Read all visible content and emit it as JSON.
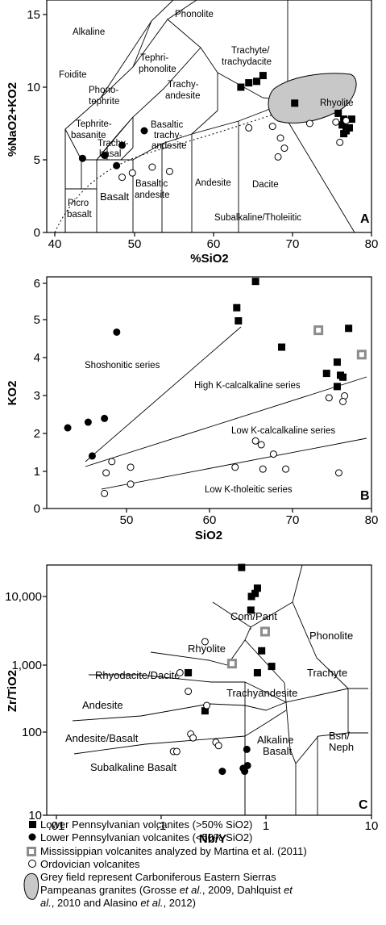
{
  "chart_data": [
    {
      "panel": "A",
      "type": "scatter",
      "xlabel": "%SiO2",
      "ylabel": "%NaO2+KO2",
      "xlim": [
        36,
        80
      ],
      "ylim": [
        0,
        16
      ],
      "xticks": [
        "40",
        "50",
        "60",
        "70",
        "80"
      ],
      "yticks": [
        "0",
        "5",
        "10",
        "15"
      ],
      "field_labels": [
        "Alkaline",
        "Phonolite",
        "Foidite",
        "Tephri-",
        "phonolite",
        "Trachyte/",
        "trachydacite",
        "Rhyolite",
        "Phono-",
        "tephrite",
        "Trachy-",
        "andesite",
        "Tephrite-",
        "basanite",
        "Basaltic",
        "trachy-",
        "andesite",
        "Trachy-",
        "basal",
        "Picro",
        "basalt",
        "Basalt",
        "Basaltic",
        "andesite",
        "Andesite",
        "Dacite",
        "Subalkaline/Tholeiitic"
      ],
      "series": [
        {
          "name": "Lower Pennsylvanian volcanites (>50% SiO2)",
          "marker": "filled-square",
          "points": [
            [
              63.5,
              10.0
            ],
            [
              64.5,
              10.3
            ],
            [
              65.5,
              10.4
            ],
            [
              66.3,
              10.8
            ],
            [
              70.3,
              8.9
            ],
            [
              75.8,
              8.2
            ],
            [
              76.5,
              7.8
            ],
            [
              76.3,
              7.4
            ],
            [
              77.5,
              7.8
            ],
            [
              76.8,
              7.0
            ],
            [
              77.2,
              7.2
            ],
            [
              76.5,
              6.8
            ]
          ]
        },
        {
          "name": "Lower Pennsylvanian volcanites (<50% SiO2)",
          "marker": "filled-circle",
          "points": [
            [
              43.5,
              5.1
            ],
            [
              46.3,
              5.3
            ],
            [
              48.5,
              6.0
            ],
            [
              51.3,
              7.0
            ],
            [
              47.8,
              4.6
            ]
          ]
        },
        {
          "name": "Ordovician volcanites",
          "marker": "open-circle",
          "points": [
            [
              48.5,
              3.8
            ],
            [
              49.8,
              4.1
            ],
            [
              52.3,
              4.5
            ],
            [
              54.5,
              4.2
            ],
            [
              64.5,
              7.2
            ],
            [
              67.5,
              7.3
            ],
            [
              68.5,
              6.5
            ],
            [
              69.0,
              5.8
            ],
            [
              68.2,
              5.2
            ],
            [
              72.2,
              7.5
            ],
            [
              75.5,
              7.6
            ],
            [
              76.0,
              6.2
            ],
            [
              76.8,
              7.7
            ]
          ]
        }
      ]
    },
    {
      "panel": "B",
      "type": "scatter",
      "xlabel": "SiO2",
      "ylabel": "KO2",
      "xlim": [
        40,
        80
      ],
      "ylim": [
        0,
        6
      ],
      "xticks": [
        "50",
        "60",
        "70",
        "80"
      ],
      "yticks": [
        "0",
        "1",
        "2",
        "3",
        "4",
        "5",
        "6"
      ],
      "field_labels": [
        "Shoshonitic series",
        "High K-calcalkaline series",
        "Low K-calcalkaline series",
        "Low K-tholeitic series"
      ],
      "series": [
        {
          "name": "Lower Pennsylvanian volcanites (>50% SiO2)",
          "marker": "filled-square",
          "points": [
            [
              65.8,
              6.05
            ],
            [
              63.5,
              5.35
            ],
            [
              63.7,
              5.0
            ],
            [
              69.0,
              4.3
            ],
            [
              77.2,
              4.8
            ],
            [
              75.8,
              3.9
            ],
            [
              74.5,
              3.6
            ],
            [
              76.2,
              3.55
            ],
            [
              75.8,
              3.25
            ],
            [
              76.5,
              3.5
            ]
          ]
        },
        {
          "name": "Lower Pennsylvanian volcanites (<50% SiO2)",
          "marker": "filled-circle",
          "points": [
            [
              42.8,
              2.15
            ],
            [
              45.3,
              2.3
            ],
            [
              47.3,
              2.4
            ],
            [
              48.8,
              4.7
            ],
            [
              45.8,
              1.4
            ]
          ]
        },
        {
          "name": "Mississippian volcanites analyzed by Martina et al. (2011)",
          "marker": "grey-square",
          "points": [
            [
              73.5,
              4.75
            ],
            [
              78.8,
              4.1
            ]
          ]
        },
        {
          "name": "Ordovician volcanites",
          "marker": "open-circle",
          "points": [
            [
              48.2,
              1.25
            ],
            [
              50.5,
              1.1
            ],
            [
              47.5,
              0.95
            ],
            [
              47.3,
              0.4
            ],
            [
              50.5,
              0.65
            ],
            [
              63.3,
              1.1
            ],
            [
              66.7,
              1.05
            ],
            [
              68.0,
              1.45
            ],
            [
              69.5,
              1.05
            ],
            [
              65.8,
              1.8
            ],
            [
              66.5,
              1.7
            ],
            [
              74.8,
              2.95
            ],
            [
              76.7,
              3.0
            ],
            [
              76.5,
              2.85
            ],
            [
              76.0,
              0.95
            ]
          ]
        }
      ]
    },
    {
      "panel": "C",
      "type": "scatter",
      "xscale": "log",
      "yscale": "log",
      "xlabel": "Nb/Y",
      "ylabel": "Zr/TiO2",
      "xlim": [
        0.01,
        10
      ],
      "ylim": [
        10,
        25000
      ],
      "xticks": [
        ".01",
        ".1",
        "1",
        "10"
      ],
      "yticks": [
        "10",
        "100",
        "1,000",
        "10,000"
      ],
      "field_labels": [
        "Phonolite",
        "Com/Pant",
        "Rhyolite",
        "Trachyte",
        "Rhyodacite/Dacite",
        "Trachyandesite",
        "Andesite",
        "Andesite/Basalt",
        "Alkaline",
        "Basalt",
        "Bsn/",
        "Neph",
        "Subalkaline Basalt"
      ],
      "series": [
        {
          "name": "Lower Pennsylvanian volcanites (>50% SiO2)",
          "marker": "filled-square",
          "points": [
            [
              0.58,
              25000
            ],
            [
              0.72,
              10000
            ],
            [
              0.78,
              11000
            ],
            [
              0.82,
              13000
            ],
            [
              0.71,
              6500
            ],
            [
              0.9,
              1800
            ],
            [
              0.82,
              900
            ],
            [
              1.12,
              1100
            ],
            [
              0.18,
              900
            ],
            [
              0.26,
              270
            ]
          ]
        },
        {
          "name": "Lower Pennsylvanian volcanites (<50% SiO2)",
          "marker": "filled-circle",
          "points": [
            [
              0.65,
              80
            ],
            [
              0.66,
              48
            ],
            [
              0.6,
              44
            ],
            [
              0.62,
              40
            ],
            [
              0.38,
              40
            ]
          ]
        },
        {
          "name": "Mississippian volcanites analyzed by Martina et al. (2011)",
          "marker": "grey-square",
          "points": [
            [
              0.97,
              3300
            ],
            [
              0.47,
              1200
            ]
          ]
        },
        {
          "name": "Ordovician volcanites",
          "marker": "open-circle",
          "points": [
            [
              0.26,
              2400
            ],
            [
              0.15,
              900
            ],
            [
              0.18,
              500
            ],
            [
              0.27,
              320
            ],
            [
              0.19,
              130
            ],
            [
              0.2,
              115
            ],
            [
              0.33,
              100
            ],
            [
              0.35,
              90
            ],
            [
              0.13,
              75
            ],
            [
              0.14,
              75
            ]
          ]
        }
      ]
    }
  ],
  "legend": [
    {
      "marker": "filled-square",
      "label": "Lower Pennsylvanian volcanites (>50% SiO2)"
    },
    {
      "marker": "filled-circle",
      "label": "Lower Pennsylvanian volcanites (<50% SiO2)"
    },
    {
      "marker": "grey-square",
      "label": "Mississippian volcanites analyzed by Martina et al. (2011)"
    },
    {
      "marker": "open-circle",
      "label": "Ordovician volcanites"
    },
    {
      "marker": "grey-field",
      "label": "Grey field represent Carboniferous Eastern Sierras Pampeanas granites (Grosse et al., 2009, Dahlquist et al., 2010 and Alasino et al., 2012)"
    }
  ],
  "colors": {
    "grey_field": "#c8c8c8",
    "grey_square": "#8c8c8c",
    "ink": "#000000"
  }
}
